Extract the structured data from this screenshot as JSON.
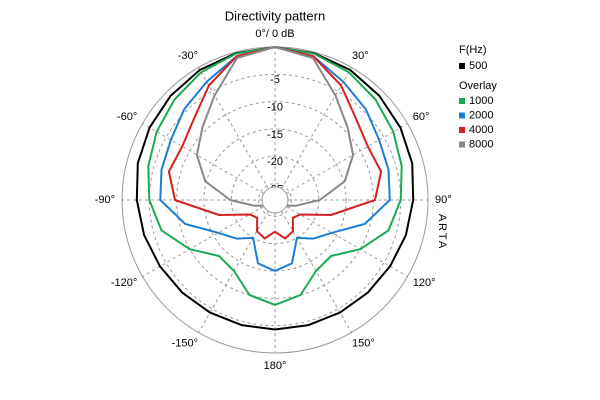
{
  "chart_data": {
    "type": "polar",
    "title": "Directivity pattern",
    "annotation": "ARTA",
    "legend_title": "F(Hz)",
    "overlay_title": "Overlay",
    "rlim": [
      -28,
      0
    ],
    "rticks": [
      -5,
      -10,
      -15,
      -20,
      -25
    ],
    "thetaticks": [
      {
        "value": 0,
        "label": "0°/ 0 dB"
      },
      {
        "value": 30,
        "label": "30°"
      },
      {
        "value": 60,
        "label": "60°"
      },
      {
        "value": 90,
        "label": "90°"
      },
      {
        "value": 120,
        "label": "120°"
      },
      {
        "value": 150,
        "label": "150°"
      },
      {
        "value": 180,
        "label": "180°"
      },
      {
        "value": -150,
        "label": "-150°"
      },
      {
        "value": -120,
        "label": "-120°"
      },
      {
        "value": -90,
        "label": "-90°"
      },
      {
        "value": -60,
        "label": "-60°"
      },
      {
        "value": -30,
        "label": "-30°"
      }
    ],
    "theta": [
      -180,
      -165,
      -150,
      -135,
      -120,
      -105,
      -90,
      -75,
      -60,
      -45,
      -30,
      -15,
      0,
      15,
      30,
      45,
      60,
      75,
      90,
      105,
      120,
      135,
      150,
      165,
      180
    ],
    "series": [
      {
        "name": "500",
        "color": "#000000",
        "values": [
          -4.3,
          -4.3,
          -4.2,
          -4,
          -3.7,
          -3.2,
          -2.7,
          -2,
          -1.5,
          -1,
          -0.5,
          -0.2,
          0,
          -0.2,
          -0.5,
          -1,
          -1.5,
          -2,
          -2.7,
          -3.2,
          -3.7,
          -4,
          -4.2,
          -4.3,
          -4.3
        ]
      },
      {
        "name": "1000",
        "color": "#1aaa55",
        "values": [
          -8.8,
          -10,
          -13,
          -13.5,
          -10,
          -6.5,
          -5,
          -4,
          -3,
          -2,
          -1,
          -0.3,
          0,
          -0.3,
          -1,
          -2,
          -3,
          -4,
          -5,
          -6.5,
          -10,
          -13.5,
          -13,
          -10,
          -8.8
        ]
      },
      {
        "name": "2000",
        "color": "#1a7fd4",
        "values": [
          -15,
          -16,
          -20,
          -18,
          -16,
          -11,
          -7,
          -6.5,
          -6,
          -4.5,
          -3,
          -0.8,
          0,
          -0.8,
          -3,
          -4.5,
          -6,
          -6.5,
          -7,
          -11,
          -16,
          -18,
          -20,
          -16,
          -15
        ]
      },
      {
        "name": "4000",
        "color": "#d42020",
        "values": [
          -22.2,
          -20.7,
          -21.4,
          -23.4,
          -22.7,
          -17.4,
          -9.7,
          -7.9,
          -8.4,
          -7,
          -3.8,
          -0.8,
          0,
          -0.8,
          -3.8,
          -7,
          -8.4,
          -7.9,
          -9.7,
          -17.4,
          -22.7,
          -23.4,
          -21.4,
          -20.7,
          -22.2
        ]
      },
      {
        "name": "8000",
        "color": "#888888",
        "values": [
          -26,
          -26,
          -26,
          -26,
          -26,
          -24,
          -19.8,
          -14.8,
          -11.5,
          -9.2,
          -5.9,
          -1.1,
          0,
          -1.1,
          -5.9,
          -9.2,
          -11.5,
          -14.8,
          -19.8,
          -24,
          -26,
          -26,
          -26,
          -26,
          -26
        ]
      }
    ]
  }
}
